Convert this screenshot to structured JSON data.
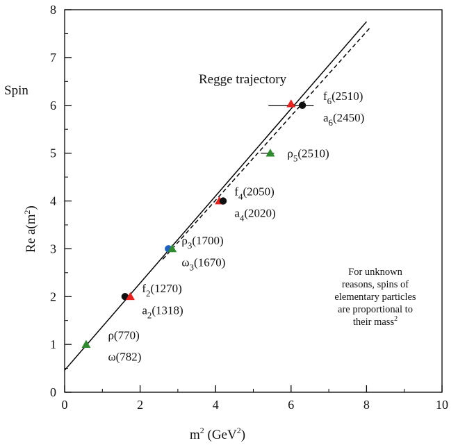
{
  "chart_data": {
    "type": "scatter",
    "xlabel": {
      "base": "m",
      "sup": "2",
      "unit_open": " (GeV",
      "unit_sup": "2",
      "unit_close": ")"
    },
    "ylabel": {
      "main": "Re a(m",
      "sup": "2",
      "close": ")"
    },
    "ylabel_side": "Spin",
    "xlim": [
      0,
      10
    ],
    "ylim": [
      0,
      8
    ],
    "xticks": [
      0,
      2,
      4,
      6,
      8,
      10
    ],
    "yticks": [
      0,
      1,
      2,
      3,
      4,
      5,
      6,
      7,
      8
    ],
    "grid": false,
    "trajectory_label": "Regge trajectory",
    "lines": [
      {
        "style": "solid",
        "x": [
          0,
          8.0
        ],
        "y": [
          0.46,
          7.75
        ],
        "color": "#000000"
      },
      {
        "style": "dashed",
        "x": [
          2.6,
          8.1
        ],
        "y": [
          2.78,
          7.63
        ],
        "color": "#000000"
      }
    ],
    "error_bars": [
      {
        "y": 6.0,
        "x_from": 5.4,
        "x_to": 6.6
      },
      {
        "y": 5.0,
        "x_from": 5.2,
        "x_to": 5.55
      }
    ],
    "points": [
      {
        "x": 0.57,
        "y": 1.0,
        "marker": "triangle",
        "color": "#2e8b2e"
      },
      {
        "x": 1.6,
        "y": 2.0,
        "marker": "circle",
        "color": "#111111"
      },
      {
        "x": 1.74,
        "y": 2.0,
        "marker": "triangle",
        "color": "#e8231f"
      },
      {
        "x": 2.75,
        "y": 3.0,
        "marker": "circle",
        "color": "#1f5fbf"
      },
      {
        "x": 2.85,
        "y": 3.0,
        "marker": "triangle",
        "color": "#2e8b2e"
      },
      {
        "x": 4.1,
        "y": 4.0,
        "marker": "triangle",
        "color": "#e8231f"
      },
      {
        "x": 4.2,
        "y": 4.0,
        "marker": "circle",
        "color": "#111111"
      },
      {
        "x": 5.45,
        "y": 5.0,
        "marker": "triangle",
        "color": "#2e8b2e"
      },
      {
        "x": 6.0,
        "y": 6.03,
        "marker": "triangle",
        "color": "#e8231f"
      },
      {
        "x": 6.3,
        "y": 6.0,
        "marker": "circle",
        "color": "#111111"
      }
    ],
    "annotations": [
      {
        "name": "label-rho-770",
        "x": 1.15,
        "y": 1.2,
        "base": "ρ",
        "sub": "",
        "rest": "(770)"
      },
      {
        "name": "label-omega-782",
        "x": 1.15,
        "y": 0.75,
        "base": "ω",
        "sub": "",
        "rest": "(782)"
      },
      {
        "name": "label-f2-1270",
        "x": 2.05,
        "y": 2.18,
        "base": "f",
        "sub": "2",
        "rest": "(1270)"
      },
      {
        "name": "label-a2-1318",
        "x": 2.05,
        "y": 1.72,
        "base": "a",
        "sub": "2",
        "rest": "(1318)"
      },
      {
        "name": "label-rho3-1700",
        "x": 3.1,
        "y": 3.18,
        "base": "ρ",
        "sub": "3",
        "rest": "(1700)"
      },
      {
        "name": "label-omega3-1670",
        "x": 3.1,
        "y": 2.72,
        "base": "ω",
        "sub": "3",
        "rest": "(1670)"
      },
      {
        "name": "label-f4-2050",
        "x": 4.5,
        "y": 4.2,
        "base": "f",
        "sub": "4",
        "rest": "(2050)"
      },
      {
        "name": "label-a4-2020",
        "x": 4.5,
        "y": 3.75,
        "base": "a",
        "sub": "4",
        "rest": "(2020)"
      },
      {
        "name": "label-rho5-2510",
        "x": 5.9,
        "y": 5.0,
        "base": "ρ",
        "sub": "5",
        "rest": "(2510)"
      },
      {
        "name": "label-f6-2510",
        "x": 6.85,
        "y": 6.2,
        "base": "f",
        "sub": "6",
        "rest": "(2510)"
      },
      {
        "name": "label-a6-2450",
        "x": 6.85,
        "y": 5.75,
        "base": "a",
        "sub": "6",
        "rest": "(2450)"
      }
    ],
    "note_lines": [
      "For unknown",
      "reasons, spins of",
      "elementary particles",
      "are proportional to",
      "their mass"
    ],
    "note_last_sup": "2"
  }
}
